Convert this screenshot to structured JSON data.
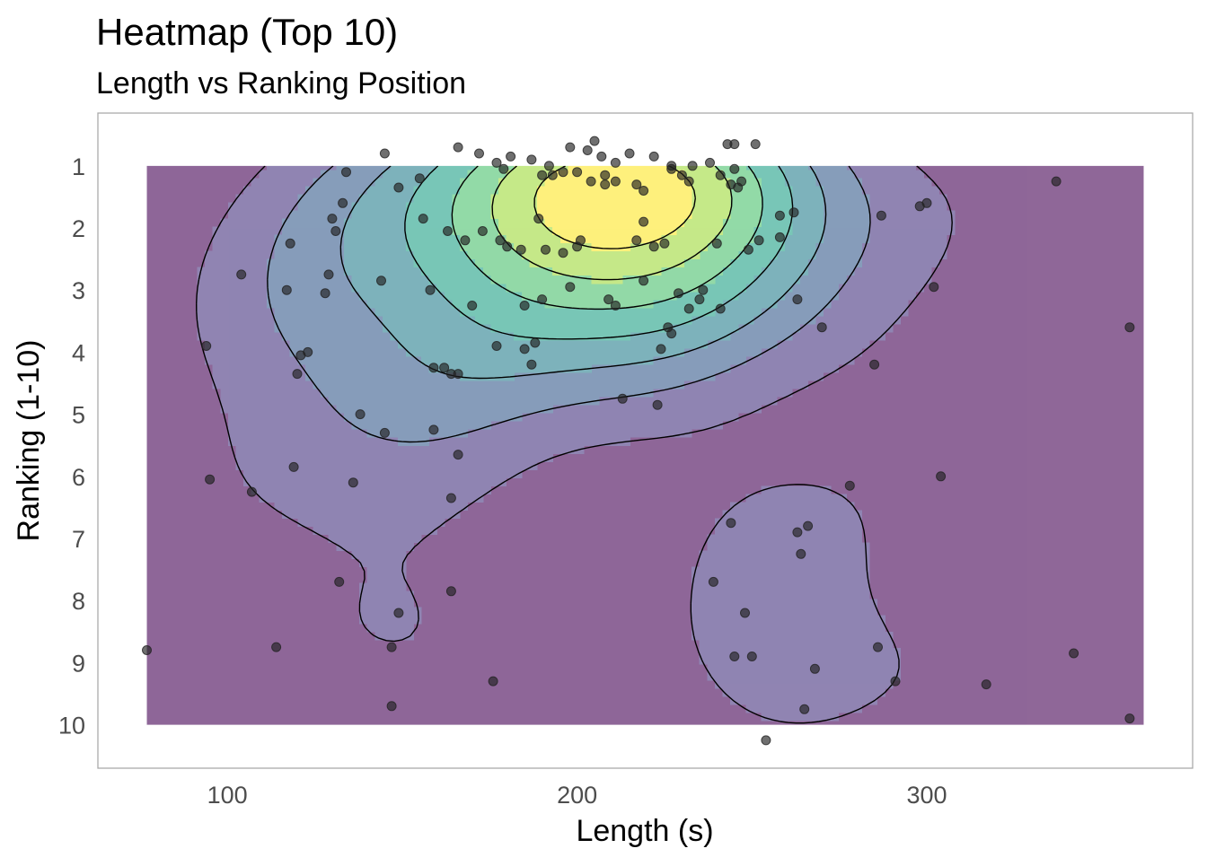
{
  "chart_data": {
    "type": "heatmap",
    "title": "Heatmap (Top 10)",
    "subtitle": "Length vs Ranking Position",
    "xlabel": "Length (s)",
    "ylabel": "Ranking (1-10)",
    "xlim": [
      63,
      376
    ],
    "ylim": [
      0.15,
      10.7
    ],
    "tile_extent": {
      "x": [
        77,
        362
      ],
      "y": [
        1,
        10
      ]
    },
    "x_ticks": [
      100,
      200,
      300
    ],
    "x_tick_labels": [
      "100",
      "200",
      "300"
    ],
    "y_ticks": [
      1,
      2,
      3,
      4,
      5,
      6,
      7,
      8,
      9,
      10
    ],
    "y_tick_labels": [
      "1",
      "2",
      "3",
      "4",
      "5",
      "6",
      "7",
      "8",
      "9",
      "10"
    ],
    "grid": false,
    "legend": "none",
    "colors": {
      "fill_levels": [
        "#440154",
        "#46337f",
        "#365c8d",
        "#277f8e",
        "#1fa187",
        "#4ac16d",
        "#9fda3a",
        "#fde725"
      ],
      "points": "#222222",
      "contour": "#000000",
      "panel_border": "#aaaaaa"
    },
    "points": [
      [
        145,
        0.8
      ],
      [
        166,
        0.7
      ],
      [
        172,
        0.8
      ],
      [
        177,
        0.95
      ],
      [
        181,
        0.85
      ],
      [
        187,
        0.9
      ],
      [
        192,
        1.0
      ],
      [
        198,
        0.7
      ],
      [
        203,
        0.75
      ],
      [
        205,
        0.6
      ],
      [
        207,
        0.85
      ],
      [
        211,
        0.95
      ],
      [
        215,
        0.8
      ],
      [
        222,
        0.85
      ],
      [
        227,
        1.0
      ],
      [
        233,
        1.0
      ],
      [
        238,
        0.95
      ],
      [
        243,
        0.65
      ],
      [
        245,
        0.65
      ],
      [
        251,
        0.65
      ],
      [
        179,
        1.05
      ],
      [
        190,
        1.15
      ],
      [
        193,
        1.15
      ],
      [
        196,
        1.1
      ],
      [
        200,
        1.1
      ],
      [
        204,
        1.25
      ],
      [
        208,
        1.15
      ],
      [
        211,
        1.25
      ],
      [
        217,
        1.3
      ],
      [
        219,
        1.4
      ],
      [
        227,
        1.05
      ],
      [
        230,
        1.15
      ],
      [
        232,
        1.25
      ],
      [
        241,
        1.15
      ],
      [
        247,
        1.25
      ],
      [
        208,
        1.3
      ],
      [
        246,
        1.35
      ],
      [
        244,
        1.3
      ],
      [
        134,
        1.1
      ],
      [
        149,
        1.35
      ],
      [
        155,
        1.2
      ],
      [
        133,
        1.6
      ],
      [
        130,
        1.85
      ],
      [
        131,
        2.05
      ],
      [
        118,
        2.25
      ],
      [
        156,
        1.85
      ],
      [
        163,
        2.05
      ],
      [
        168,
        2.2
      ],
      [
        173,
        2.05
      ],
      [
        178,
        2.2
      ],
      [
        180,
        2.3
      ],
      [
        184,
        2.35
      ],
      [
        189,
        1.85
      ],
      [
        191,
        2.35
      ],
      [
        196,
        2.4
      ],
      [
        200,
        2.3
      ],
      [
        201,
        2.2
      ],
      [
        217,
        2.2
      ],
      [
        219,
        1.9
      ],
      [
        222,
        2.3
      ],
      [
        225,
        2.25
      ],
      [
        240,
        2.25
      ],
      [
        245,
        1.05
      ],
      [
        249,
        2.35
      ],
      [
        252,
        2.2
      ],
      [
        258,
        1.8
      ],
      [
        262,
        1.75
      ],
      [
        258,
        2.15
      ],
      [
        104,
        2.75
      ],
      [
        117,
        3.0
      ],
      [
        128,
        3.05
      ],
      [
        129,
        2.75
      ],
      [
        144,
        2.85
      ],
      [
        158,
        3.0
      ],
      [
        170,
        3.25
      ],
      [
        185,
        3.25
      ],
      [
        190,
        3.15
      ],
      [
        198,
        2.95
      ],
      [
        209,
        3.15
      ],
      [
        211,
        3.25
      ],
      [
        219,
        2.85
      ],
      [
        229,
        3.05
      ],
      [
        235,
        3.15
      ],
      [
        236,
        3.0
      ],
      [
        263,
        3.15
      ],
      [
        94,
        3.9
      ],
      [
        121,
        4.05
      ],
      [
        123,
        4.0
      ],
      [
        120,
        4.35
      ],
      [
        159,
        4.25
      ],
      [
        162,
        4.25
      ],
      [
        164,
        4.35
      ],
      [
        166,
        4.35
      ],
      [
        177,
        3.9
      ],
      [
        185,
        3.95
      ],
      [
        188,
        3.85
      ],
      [
        187,
        4.2
      ],
      [
        224,
        3.95
      ],
      [
        226,
        3.6
      ],
      [
        227,
        3.7
      ],
      [
        232,
        3.3
      ],
      [
        241,
        3.3
      ],
      [
        138,
        5.0
      ],
      [
        145,
        5.3
      ],
      [
        159,
        5.25
      ],
      [
        166,
        5.65
      ],
      [
        213,
        4.75
      ],
      [
        223,
        4.85
      ],
      [
        119,
        5.85
      ],
      [
        107,
        6.25
      ],
      [
        136,
        6.1
      ],
      [
        164,
        6.35
      ],
      [
        95,
        6.05
      ],
      [
        270,
        3.6
      ],
      [
        285,
        4.2
      ],
      [
        287,
        1.8
      ],
      [
        298,
        1.65
      ],
      [
        300,
        1.6
      ],
      [
        302,
        2.95
      ],
      [
        337,
        1.25
      ],
      [
        358,
        3.6
      ],
      [
        304,
        6.0
      ],
      [
        278,
        6.15
      ],
      [
        244,
        6.75
      ],
      [
        263,
        6.9
      ],
      [
        266,
        6.8
      ],
      [
        264,
        7.25
      ],
      [
        239,
        7.7
      ],
      [
        248,
        8.2
      ],
      [
        245,
        8.9
      ],
      [
        250,
        8.9
      ],
      [
        268,
        9.1
      ],
      [
        265,
        9.75
      ],
      [
        286,
        8.75
      ],
      [
        291,
        9.3
      ],
      [
        254,
        10.25
      ],
      [
        132,
        7.7
      ],
      [
        149,
        8.2
      ],
      [
        147,
        8.75
      ],
      [
        114,
        8.75
      ],
      [
        147,
        9.7
      ],
      [
        176,
        9.3
      ],
      [
        164,
        7.85
      ],
      [
        77,
        8.8
      ],
      [
        317,
        9.35
      ],
      [
        342,
        8.85
      ],
      [
        358,
        9.9
      ]
    ]
  }
}
